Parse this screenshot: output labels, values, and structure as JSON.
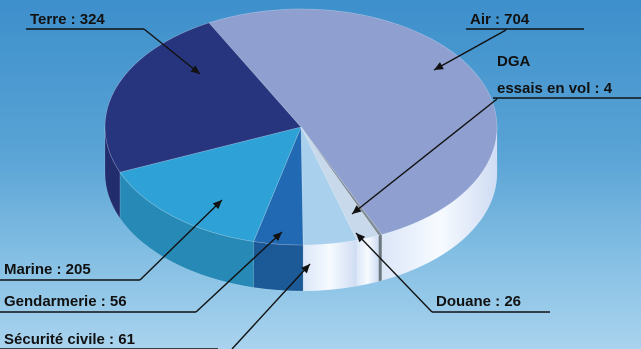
{
  "chart_data": {
    "type": "pie",
    "title": "",
    "slices": [
      {
        "label": "Air : 704",
        "name": "Air",
        "value": 704,
        "color": "#8e9fd0"
      },
      {
        "label": "DGA\nessais en vol : 4",
        "name": "DGA essais en vol",
        "value": 4,
        "color": "#7f8b95"
      },
      {
        "label": "Douane : 26",
        "name": "Douane",
        "value": 26,
        "color": "#c9d9ec"
      },
      {
        "label": "Sécurité civile : 61",
        "name": "Sécurité civile",
        "value": 61,
        "color": "#a9d0ec"
      },
      {
        "label": "Gendarmerie : 56",
        "name": "Gendarmerie",
        "value": 56,
        "color": "#2169b2"
      },
      {
        "label": "Marine : 205",
        "name": "Marine",
        "value": 205,
        "color": "#2ea2d6"
      },
      {
        "label": "Terre : 324",
        "name": "Terre",
        "value": 324,
        "color": "#27357f"
      }
    ]
  }
}
